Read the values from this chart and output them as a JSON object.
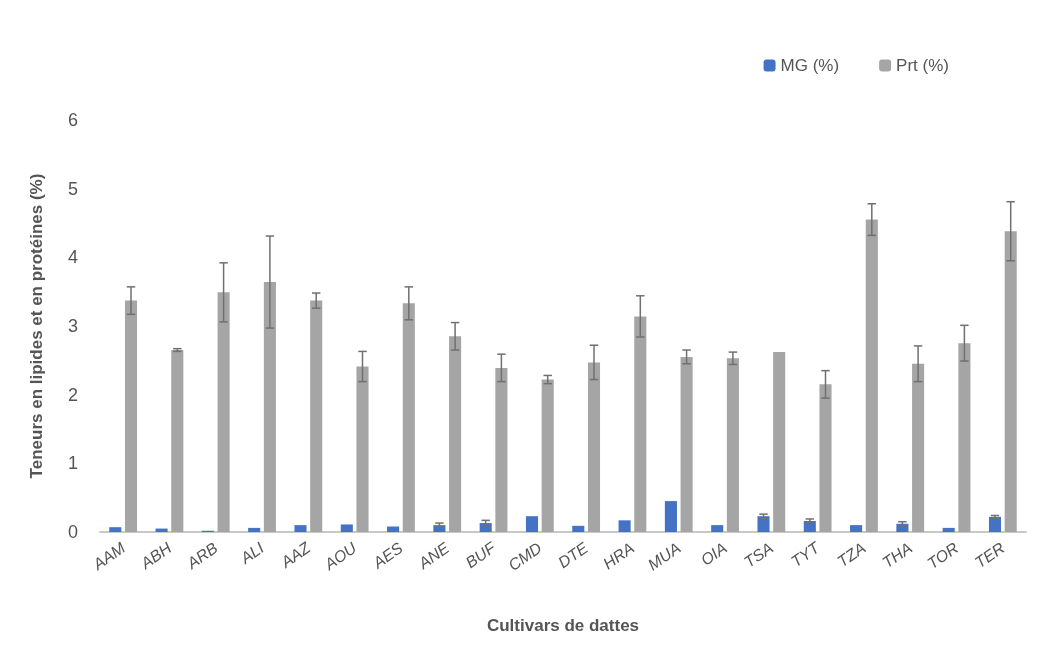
{
  "chart_data": {
    "type": "bar",
    "xlabel": "Cultivars de dattes",
    "ylabel": "Teneurs en lipides et en protéines (%)",
    "categories": [
      "AAM",
      "ABH",
      "ARB",
      "ALI",
      "AAZ",
      "AOU",
      "AES",
      "ANE",
      "BUF",
      "CMD",
      "DTE",
      "HRA",
      "MUA",
      "OIA",
      "TSA",
      "TYT",
      "TZA",
      "THA",
      "TOR",
      "TER"
    ],
    "series": [
      {
        "name": "MG (%)",
        "color": "#4472c4",
        "values": [
          0.07,
          0.05,
          0.02,
          0.06,
          0.1,
          0.11,
          0.08,
          0.1,
          0.13,
          0.23,
          0.09,
          0.17,
          0.45,
          0.1,
          0.23,
          0.16,
          0.1,
          0.12,
          0.06,
          0.22
        ],
        "errors": [
          null,
          null,
          null,
          null,
          null,
          null,
          null,
          0.03,
          0.04,
          null,
          null,
          null,
          null,
          null,
          0.03,
          0.03,
          null,
          0.03,
          null,
          0.02
        ]
      },
      {
        "name": "Prt (%)",
        "color": "#a5a5a5",
        "values": [
          3.37,
          2.65,
          3.49,
          3.64,
          3.37,
          2.41,
          3.33,
          2.85,
          2.39,
          2.22,
          2.47,
          3.14,
          2.55,
          2.53,
          2.62,
          2.15,
          4.55,
          2.45,
          2.75,
          4.38
        ],
        "errors": [
          0.2,
          0.02,
          0.43,
          0.67,
          0.11,
          0.22,
          0.24,
          0.2,
          0.2,
          0.06,
          0.25,
          0.3,
          0.1,
          0.09,
          null,
          0.2,
          0.23,
          0.26,
          0.26,
          0.43
        ]
      }
    ],
    "ylim": [
      0,
      6
    ],
    "yticks": [
      0,
      1,
      2,
      3,
      4,
      5,
      6
    ],
    "grid": false,
    "legend": "top right"
  }
}
